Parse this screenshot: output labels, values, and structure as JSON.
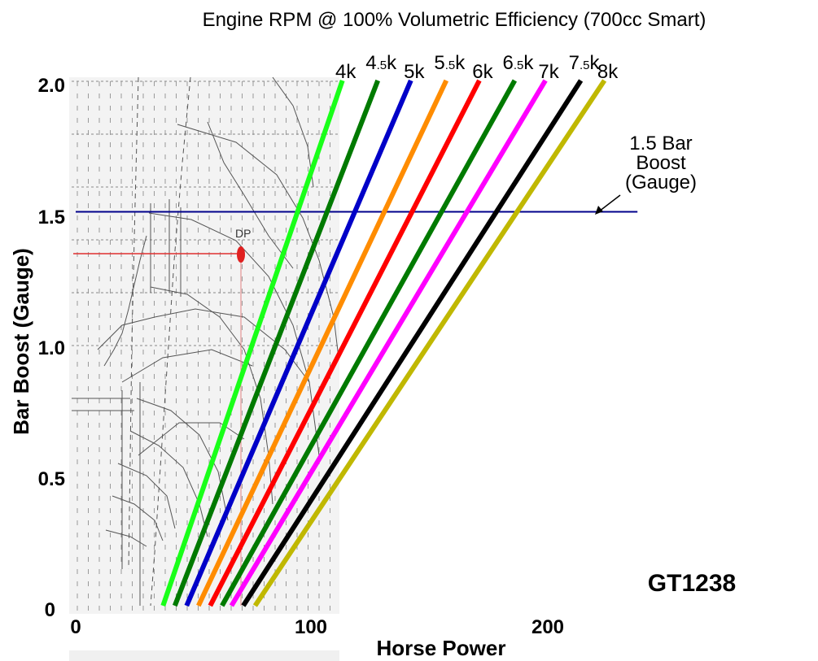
{
  "chart_data": {
    "type": "line",
    "title": "Engine RPM @ 100% Volumetric Efficiency (700cc Smart)",
    "xlabel": "Horse Power",
    "ylabel": "Bar Boost (Gauge)",
    "xlim": [
      0,
      230
    ],
    "ylim": [
      0,
      2.0
    ],
    "x_ticks": [
      "0",
      "100",
      "200"
    ],
    "y_ticks": [
      "0",
      "0.5",
      "1.0",
      "1.5",
      "2.0"
    ],
    "grid": false,
    "series": [
      {
        "name": "4k",
        "color": "#19ff19",
        "x": [
          37,
          113
        ],
        "y": [
          0,
          2.0
        ]
      },
      {
        "name": "4.5k",
        "color": "#007a00",
        "x": [
          42,
          128
        ],
        "y": [
          0,
          2.0
        ]
      },
      {
        "name": "5k",
        "color": "#0000c8",
        "x": [
          47,
          142
        ],
        "y": [
          0,
          2.0
        ]
      },
      {
        "name": "5.5k",
        "color": "#ff8c00",
        "x": [
          52,
          157
        ],
        "y": [
          0,
          2.0
        ]
      },
      {
        "name": "6k",
        "color": "#ff0000",
        "x": [
          57,
          171
        ],
        "y": [
          0,
          2.0
        ]
      },
      {
        "name": "6.5k",
        "color": "#007a00",
        "x": [
          62,
          186
        ],
        "y": [
          0,
          2.0
        ]
      },
      {
        "name": "7k",
        "color": "#ff00ff",
        "x": [
          66,
          199
        ],
        "y": [
          0,
          2.0
        ]
      },
      {
        "name": "7.5k",
        "color": "#000000",
        "x": [
          71,
          214
        ],
        "y": [
          0,
          2.0
        ]
      },
      {
        "name": "8k",
        "color": "#c0b800",
        "x": [
          76,
          224
        ],
        "y": [
          0,
          2.0
        ]
      }
    ],
    "reference_line": {
      "y": 1.5,
      "x_end": 238,
      "color": "#00008b",
      "label": [
        "1.5 Bar",
        "Boost",
        "(Gauge)"
      ]
    },
    "model_label": "GT1238"
  }
}
